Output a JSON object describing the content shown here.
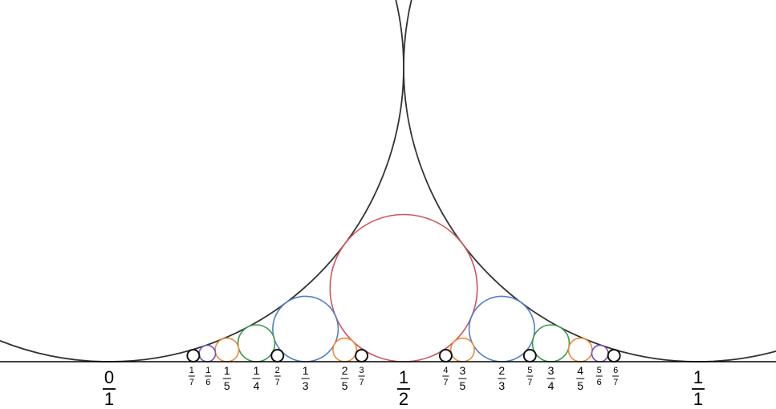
{
  "diagram": {
    "kind": "ford-circles",
    "domain": [
      0,
      1
    ],
    "colors": {
      "background": "#ffffff",
      "ink": "#000000",
      "big-arcs": "#333333",
      "baseline": "#000000"
    },
    "denominator_colors": {
      "1": "#333333",
      "2": "#d0545a",
      "3": "#4f7fc4",
      "4": "#3f9b52",
      "5": "#f08a35",
      "6": "#7b4fb5",
      "7": "#111111"
    },
    "large_circles": [
      {
        "p": 0,
        "q": 1
      },
      {
        "p": 1,
        "q": 1
      }
    ],
    "circles": [
      {
        "p": 1,
        "q": 2
      },
      {
        "p": 1,
        "q": 3
      },
      {
        "p": 2,
        "q": 3
      },
      {
        "p": 1,
        "q": 4
      },
      {
        "p": 3,
        "q": 4
      },
      {
        "p": 1,
        "q": 5
      },
      {
        "p": 2,
        "q": 5
      },
      {
        "p": 3,
        "q": 5
      },
      {
        "p": 4,
        "q": 5
      },
      {
        "p": 1,
        "q": 6
      },
      {
        "p": 5,
        "q": 6
      },
      {
        "p": 1,
        "q": 7
      },
      {
        "p": 2,
        "q": 7
      },
      {
        "p": 3,
        "q": 7
      },
      {
        "p": 4,
        "q": 7
      },
      {
        "p": 5,
        "q": 7
      },
      {
        "p": 6,
        "q": 7
      }
    ],
    "labels": [
      {
        "num": "0",
        "den": "1",
        "value": 0,
        "q": 1
      },
      {
        "num": "1",
        "den": "7",
        "value": 0.142857,
        "q": 7
      },
      {
        "num": "1",
        "den": "6",
        "value": 0.166667,
        "q": 6
      },
      {
        "num": "1",
        "den": "5",
        "value": 0.2,
        "q": 5
      },
      {
        "num": "1",
        "den": "4",
        "value": 0.25,
        "q": 4
      },
      {
        "num": "2",
        "den": "7",
        "value": 0.285714,
        "q": 7
      },
      {
        "num": "1",
        "den": "3",
        "value": 0.333333,
        "q": 3
      },
      {
        "num": "2",
        "den": "5",
        "value": 0.4,
        "q": 5
      },
      {
        "num": "3",
        "den": "7",
        "value": 0.428571,
        "q": 7
      },
      {
        "num": "1",
        "den": "2",
        "value": 0.5,
        "q": 2
      },
      {
        "num": "4",
        "den": "7",
        "value": 0.571429,
        "q": 7
      },
      {
        "num": "3",
        "den": "5",
        "value": 0.6,
        "q": 5
      },
      {
        "num": "2",
        "den": "3",
        "value": 0.666667,
        "q": 3
      },
      {
        "num": "5",
        "den": "7",
        "value": 0.714286,
        "q": 7
      },
      {
        "num": "3",
        "den": "4",
        "value": 0.75,
        "q": 4
      },
      {
        "num": "4",
        "den": "5",
        "value": 0.8,
        "q": 5
      },
      {
        "num": "5",
        "den": "6",
        "value": 0.833333,
        "q": 6
      },
      {
        "num": "6",
        "den": "7",
        "value": 0.857143,
        "q": 7
      },
      {
        "num": "1",
        "den": "1",
        "value": 1,
        "q": 1
      }
    ]
  }
}
